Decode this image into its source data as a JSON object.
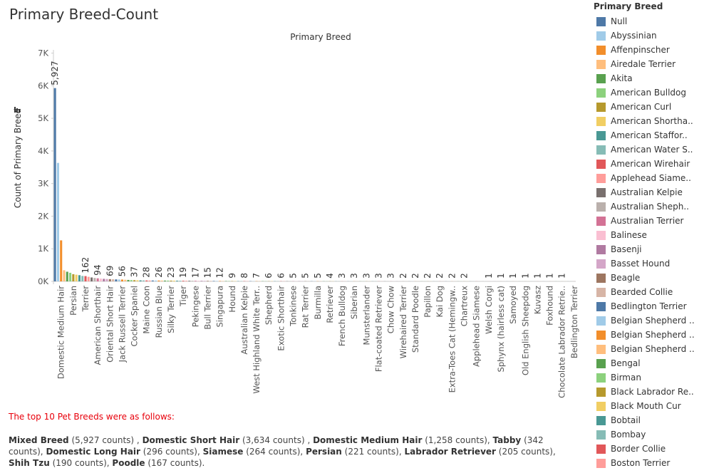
{
  "chart_data": {
    "type": "bar",
    "title": "Primary Breed-Count",
    "header": "Primary Breed",
    "y_label": "Count of Primary Breed",
    "ylim": [
      0,
      7100
    ],
    "yticks": [
      {
        "value": 0,
        "label": "0K"
      },
      {
        "value": 1000,
        "label": "1K"
      },
      {
        "value": 2000,
        "label": "2K"
      },
      {
        "value": 3000,
        "label": "3K"
      },
      {
        "value": 4000,
        "label": "4K"
      },
      {
        "value": 5000,
        "label": "5K"
      },
      {
        "value": 6000,
        "label": "6K"
      },
      {
        "value": 7000,
        "label": "7K"
      }
    ],
    "categories": [
      null,
      null,
      "Domestic Medium Hair",
      null,
      null,
      null,
      "Persian",
      null,
      null,
      null,
      "Terrier",
      null,
      null,
      null,
      "American Shorthair",
      null,
      null,
      null,
      "Oriental Short Hair",
      null,
      null,
      null,
      "Jack Russell Terrier",
      null,
      null,
      null,
      "Cocker Spaniel",
      null,
      null,
      null,
      "Maine Coon",
      null,
      null,
      null,
      "Russian Blue",
      null,
      null,
      null,
      "Silky Terrier",
      null,
      null,
      null,
      "Tiger",
      null,
      null,
      null,
      "Pekingese",
      null,
      null,
      null,
      "Bull Terrier",
      null,
      null,
      null,
      "Singapura",
      null,
      null,
      null,
      "Hound",
      null,
      null,
      null,
      "Australian Kelpie",
      null,
      null,
      null,
      "West Highland White Terr..",
      null,
      null,
      null,
      "Shepherd",
      null,
      null,
      null,
      "Exotic Shorthair",
      null,
      null,
      null,
      "Tonkinese",
      null,
      null,
      null,
      "Rat Terrier",
      null,
      null,
      null,
      "Burmilla",
      null,
      null,
      null,
      "Retriever",
      null,
      null,
      null,
      "French Bulldog",
      null,
      null,
      null,
      "Siberian",
      null,
      null,
      null,
      "Munsterlander",
      null,
      null,
      null,
      "Flat-coated Retriever",
      null,
      null,
      null,
      "Chow Chow",
      null,
      null,
      null,
      "Wirehaired Terrier",
      null,
      null,
      null,
      "Standard Poodle",
      null,
      null,
      null,
      "Papillon",
      null,
      null,
      null,
      "Kai Dog",
      null,
      null,
      null,
      "Extra-Toes Cat (Hemingw..",
      null,
      null,
      null,
      "Chartreux",
      null,
      null,
      null,
      "Applehead Siamese",
      null,
      null,
      null,
      "Welsh Corgi",
      null,
      null,
      null,
      "Sphynx (hairless cat)",
      null,
      null,
      null,
      "Samoyed",
      null,
      null,
      null,
      "Old English Sheepdog",
      null,
      null,
      null,
      "Kuvasz",
      null,
      null,
      null,
      "Foxhound",
      null,
      null,
      null,
      "Chocolate Labrador Retrie..",
      null,
      null,
      null,
      "Bedlington Terrier"
    ],
    "values": [
      5927,
      3634,
      1258,
      342,
      296,
      264,
      221,
      205,
      190,
      167,
      162,
      140,
      120,
      105,
      94,
      85,
      78,
      73,
      69,
      65,
      61,
      58,
      56,
      50,
      45,
      40,
      37,
      34,
      31,
      29,
      28,
      27,
      27,
      26,
      26,
      25,
      24,
      24,
      23,
      22,
      21,
      20,
      19,
      19,
      18,
      18,
      17,
      17,
      16,
      16,
      15,
      14,
      13,
      13,
      12,
      11,
      10,
      10,
      9,
      9,
      8,
      8,
      8,
      8,
      7,
      7,
      7,
      7,
      6,
      6,
      6,
      6,
      6,
      6,
      6,
      6,
      5,
      5,
      5,
      5,
      5,
      5,
      5,
      5,
      5,
      5,
      5,
      4,
      4,
      4,
      4,
      4,
      3,
      3,
      3,
      3,
      3,
      3,
      3,
      3,
      3,
      3,
      3,
      3,
      3,
      3,
      3,
      3,
      3,
      3,
      3,
      3,
      2,
      2,
      2,
      2,
      2,
      2,
      2,
      2,
      2,
      2,
      2,
      2,
      2,
      2,
      2,
      2,
      2,
      2,
      2,
      2,
      2,
      2,
      2,
      2,
      2,
      2,
      2,
      1,
      1,
      1,
      1,
      1,
      1,
      1,
      1,
      1,
      1,
      1,
      1,
      1,
      1,
      1,
      1,
      1,
      1,
      1,
      1,
      1,
      1,
      1,
      1,
      1,
      1,
      1,
      1,
      1,
      1,
      1,
      1
    ],
    "value_labels": [
      "5,927",
      null,
      null,
      null,
      null,
      null,
      null,
      null,
      null,
      null,
      "162",
      null,
      null,
      null,
      "94",
      null,
      null,
      null,
      "69",
      null,
      null,
      null,
      "56",
      null,
      null,
      null,
      "37",
      null,
      null,
      null,
      "28",
      null,
      null,
      null,
      "26",
      null,
      null,
      null,
      "23",
      null,
      null,
      null,
      "19",
      null,
      null,
      null,
      "17",
      null,
      null,
      null,
      "15",
      null,
      null,
      null,
      "12",
      null,
      null,
      null,
      "9",
      null,
      null,
      null,
      "8",
      null,
      null,
      null,
      "7",
      null,
      null,
      null,
      "6",
      null,
      null,
      null,
      "6",
      null,
      null,
      null,
      "5",
      null,
      null,
      null,
      "5",
      null,
      null,
      null,
      "5",
      null,
      null,
      null,
      "4",
      null,
      null,
      null,
      "3",
      null,
      null,
      null,
      "3",
      null,
      null,
      null,
      "3",
      null,
      null,
      null,
      "3",
      null,
      null,
      null,
      "3",
      null,
      null,
      null,
      "2",
      null,
      null,
      null,
      "2",
      null,
      null,
      null,
      "2",
      null,
      null,
      null,
      "2",
      null,
      null,
      null,
      "2",
      null,
      null,
      null,
      "2",
      null,
      null,
      null,
      null,
      null,
      null,
      null,
      "1",
      null,
      null,
      null,
      "1",
      null,
      null,
      null,
      "1",
      null,
      null,
      null,
      "1",
      null,
      null,
      null,
      "1",
      null,
      null,
      null,
      "1",
      null,
      null,
      null,
      "1",
      null,
      null,
      null,
      null
    ],
    "legend": {
      "title": "Primary Breed",
      "items": [
        {
          "name": "Null",
          "color": "#4e79a7"
        },
        {
          "name": "Abyssinian",
          "color": "#a0cbe8"
        },
        {
          "name": "Affenpinscher",
          "color": "#f28e2b"
        },
        {
          "name": "Airedale Terrier",
          "color": "#ffbe7d"
        },
        {
          "name": "Akita",
          "color": "#59a14f"
        },
        {
          "name": "American Bulldog",
          "color": "#8cd17d"
        },
        {
          "name": "American Curl",
          "color": "#b6992d"
        },
        {
          "name": "American Shortha..",
          "color": "#f1ce63"
        },
        {
          "name": "American Staffor..",
          "color": "#499894"
        },
        {
          "name": "American Water S..",
          "color": "#86bcb6"
        },
        {
          "name": "American Wirehair",
          "color": "#e15759"
        },
        {
          "name": "Applehead Siame..",
          "color": "#ff9d9a"
        },
        {
          "name": "Australian Kelpie",
          "color": "#79706e"
        },
        {
          "name": "Australian Sheph..",
          "color": "#bab0ac"
        },
        {
          "name": "Australian Terrier",
          "color": "#d37295"
        },
        {
          "name": "Balinese",
          "color": "#fabfd2"
        },
        {
          "name": "Basenji",
          "color": "#b07aa1"
        },
        {
          "name": "Basset Hound",
          "color": "#d4a6c8"
        },
        {
          "name": "Beagle",
          "color": "#9d7660"
        },
        {
          "name": "Bearded Collie",
          "color": "#d7b5a6"
        },
        {
          "name": "Bedlington Terrier",
          "color": "#4e79a7"
        },
        {
          "name": "Belgian Shepherd ..",
          "color": "#a0cbe8"
        },
        {
          "name": "Belgian Shepherd ..",
          "color": "#f28e2b"
        },
        {
          "name": "Belgian Shepherd ..",
          "color": "#ffbe7d"
        },
        {
          "name": "Bengal",
          "color": "#59a14f"
        },
        {
          "name": "Birman",
          "color": "#8cd17d"
        },
        {
          "name": "Black Labrador Re..",
          "color": "#b6992d"
        },
        {
          "name": "Black Mouth Cur",
          "color": "#f1ce63"
        },
        {
          "name": "Bobtail",
          "color": "#499894"
        },
        {
          "name": "Bombay",
          "color": "#86bcb6"
        },
        {
          "name": "Border Collie",
          "color": "#e15759"
        },
        {
          "name": "Boston Terrier",
          "color": "#ff9d9a"
        }
      ]
    }
  },
  "note": {
    "title": "The top 10 Pet Breeds were as follows:",
    "items": [
      {
        "breed": "Mixed Breed",
        "detail": "(5,927 counts) ,"
      },
      {
        "breed": "Domestic Short Hair",
        "detail": "(3,634 counts) ,"
      },
      {
        "breed": "Domestic Medium Hair",
        "detail": "(1,258 counts),"
      },
      {
        "breed": "Tabby",
        "detail": "(342 counts),"
      },
      {
        "breed": "Domestic Long Hair",
        "detail": "(296 counts),"
      },
      {
        "breed": "Siamese",
        "detail": "(264 counts),"
      },
      {
        "breed": "Persian",
        "detail": "(221 counts),"
      },
      {
        "breed": "Labrador Retriever",
        "detail": "(205 counts),"
      },
      {
        "breed": "Shih Tzu",
        "detail": "(190 counts),"
      },
      {
        "breed": "Poodle",
        "detail": "(167 counts)."
      }
    ]
  }
}
